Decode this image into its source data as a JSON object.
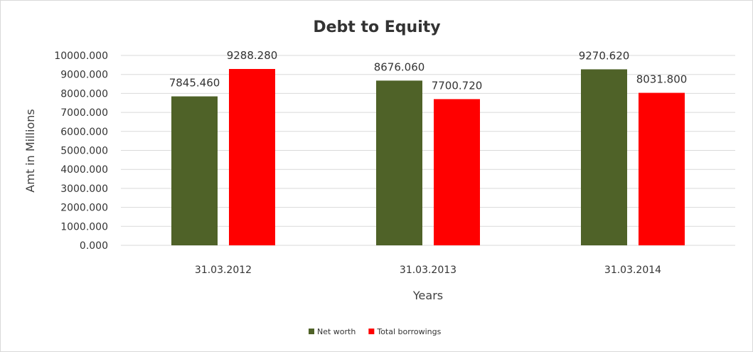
{
  "chart_data": {
    "type": "bar",
    "title": "Debt to Equity",
    "xlabel": "Years",
    "ylabel": "Amt in Millions",
    "categories": [
      "31.03.2012",
      "31.03.2013",
      "31.03.2014"
    ],
    "series": [
      {
        "name": "Net worth",
        "values": [
          7845.46,
          8676.06,
          9270.62
        ],
        "color": "#4f6228"
      },
      {
        "name": "Total borrowings",
        "values": [
          9288.28,
          7700.72,
          8031.8
        ],
        "color": "#ff0000"
      }
    ],
    "value_labels": [
      [
        "7845.460",
        "8676.060",
        "9270.620"
      ],
      [
        "9288.280",
        "7700.720",
        "8031.800"
      ]
    ],
    "y_ticks": [
      "0.000",
      "1000.000",
      "2000.000",
      "3000.000",
      "4000.000",
      "5000.000",
      "6000.000",
      "7000.000",
      "8000.000",
      "9000.000",
      "10000.000"
    ],
    "ylim": [
      0,
      10000
    ],
    "grid": true,
    "legend_position": "bottom",
    "gridline_color": "#d9d9d9"
  }
}
